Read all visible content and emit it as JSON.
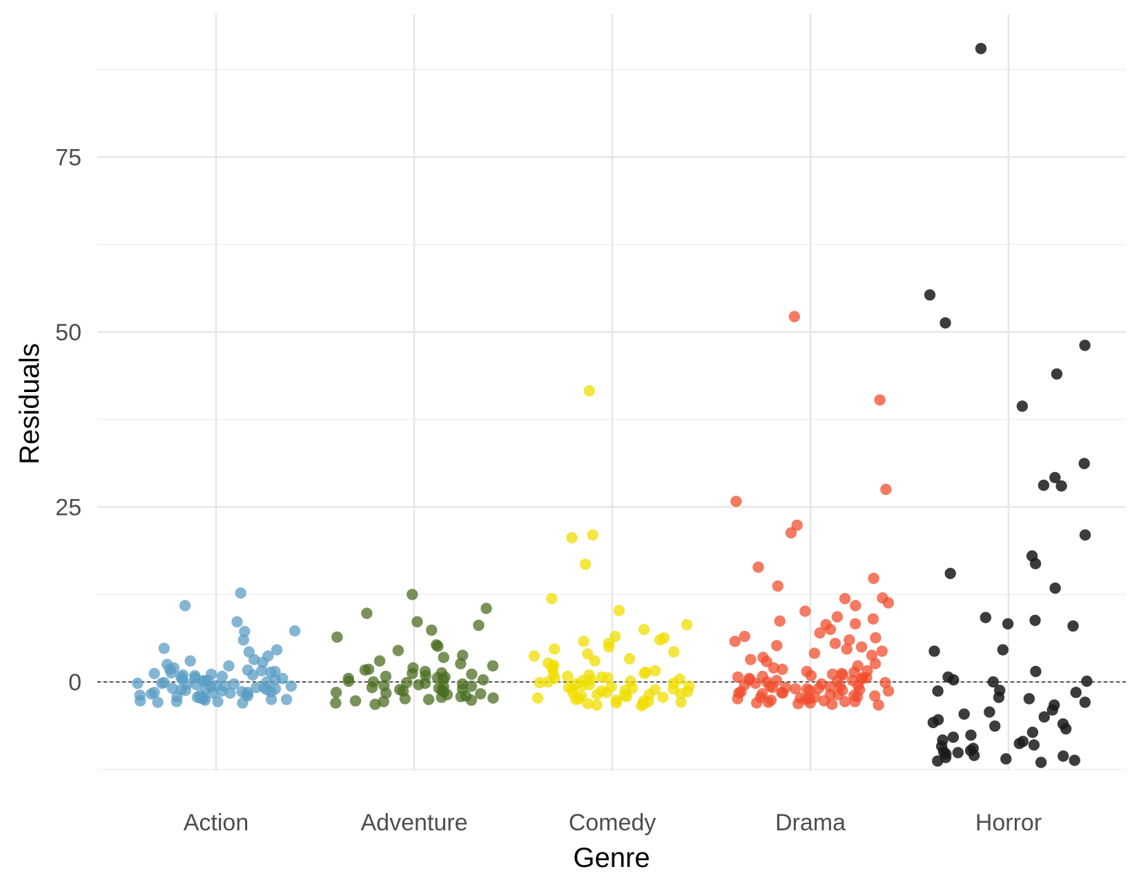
{
  "chart_data": {
    "type": "scatter",
    "xlabel": "Genre",
    "ylabel": "Residuals",
    "categories": [
      "Action",
      "Adventure",
      "Comedy",
      "Drama",
      "Horror"
    ],
    "ylim": [
      -12.5,
      92.5
    ],
    "yticks": [
      0,
      25,
      50,
      75
    ],
    "reference_line": 0,
    "grid": true,
    "legend": "none",
    "colors": {
      "Action": "#5b9ec4",
      "Adventure": "#4b6d21",
      "Comedy": "#f0de00",
      "Drama": "#f04e2e",
      "Horror": "#1a1a1a"
    },
    "series": [
      {
        "category": "Action",
        "values": [
          12.7,
          10.9,
          8.6,
          7.3,
          7.2,
          6.0,
          4.8,
          4.6,
          4.3,
          3.7,
          3.2,
          3.0,
          2.8,
          2.5,
          2.3,
          2.0,
          1.8,
          1.6,
          1.5,
          1.4,
          1.2,
          1.1,
          1.0,
          0.9,
          0.7,
          0.6,
          0.5,
          0.3,
          0.2,
          0.1,
          0.0,
          -0.1,
          -0.2,
          -0.3,
          -0.4,
          -0.5,
          -0.6,
          -0.7,
          -0.8,
          -0.9,
          -1.0,
          -1.0,
          -1.1,
          -1.2,
          -1.3,
          -1.4,
          -1.5,
          -1.5,
          -1.6,
          -1.7,
          -1.8,
          -1.9,
          -2.0,
          -2.1,
          -2.2,
          -2.3,
          -2.4,
          -2.5,
          -2.6,
          -2.7,
          -2.8,
          -2.9,
          -3.0,
          -0.2,
          0.4,
          -1.1,
          -2.2,
          1.3,
          -0.8,
          -1.6,
          0.8,
          -2.5,
          -0.3,
          1.7,
          -1.9,
          -0.6,
          0.2,
          -2.8,
          -1.4,
          1.0
        ]
      },
      {
        "category": "Adventure",
        "values": [
          12.5,
          10.5,
          9.8,
          8.6,
          8.1,
          7.4,
          6.4,
          5.3,
          5.1,
          4.5,
          3.8,
          3.5,
          3.0,
          2.6,
          2.3,
          2.0,
          1.7,
          1.5,
          1.3,
          1.1,
          0.9,
          0.7,
          0.5,
          0.3,
          0.1,
          0.0,
          -0.1,
          -0.3,
          -0.5,
          -0.6,
          -0.8,
          -1.0,
          -1.1,
          -1.3,
          -1.5,
          -1.6,
          -1.8,
          -2.0,
          -2.1,
          -2.3,
          -2.5,
          -2.6,
          -2.8,
          -3.0,
          -3.2,
          -0.4,
          0.6,
          -1.4,
          -2.2,
          1.2,
          -0.9,
          -1.7,
          0.4,
          -2.7,
          -0.2,
          1.8,
          -1.2,
          -2.4,
          0.8,
          -0.7
        ]
      },
      {
        "category": "Comedy",
        "values": [
          41.6,
          21.0,
          20.6,
          16.8,
          11.9,
          10.2,
          8.2,
          7.5,
          6.5,
          6.3,
          6.0,
          5.8,
          5.5,
          5.0,
          4.7,
          4.3,
          4.0,
          3.7,
          3.3,
          3.0,
          2.7,
          2.4,
          2.1,
          1.9,
          1.6,
          1.4,
          1.2,
          1.0,
          0.8,
          0.6,
          0.4,
          0.2,
          0.0,
          -0.2,
          -0.4,
          -0.6,
          -0.8,
          -1.0,
          -1.2,
          -1.4,
          -1.6,
          -1.8,
          -2.0,
          -2.2,
          -2.4,
          -2.6,
          -2.8,
          -3.0,
          -3.2,
          -3.4,
          -0.3,
          0.5,
          -1.1,
          -2.3,
          1.1,
          -0.7,
          -1.5,
          0.3,
          -2.7,
          -0.9,
          -1.9,
          -3.1,
          0.7,
          -1.3,
          -2.1,
          -0.5,
          -2.9,
          -1.7,
          0.1,
          -3.3,
          -1.0,
          -2.5,
          -0.1,
          -1.8
        ]
      },
      {
        "category": "Drama",
        "values": [
          52.2,
          40.3,
          27.5,
          25.8,
          22.4,
          21.3,
          16.4,
          14.8,
          13.7,
          12.0,
          11.9,
          11.3,
          10.9,
          10.1,
          9.3,
          9.0,
          8.7,
          8.3,
          8.2,
          7.5,
          7.0,
          6.5,
          6.3,
          6.0,
          5.8,
          5.5,
          5.2,
          5.0,
          4.7,
          4.4,
          4.1,
          3.8,
          3.5,
          3.2,
          2.9,
          2.6,
          2.3,
          2.0,
          1.8,
          1.6,
          1.4,
          1.2,
          1.0,
          0.8,
          0.6,
          0.4,
          0.2,
          0.0,
          -0.2,
          -0.4,
          -0.6,
          -0.8,
          -1.0,
          -1.2,
          -1.4,
          -1.6,
          -1.8,
          -2.0,
          -2.2,
          -2.4,
          -2.6,
          -2.8,
          -3.0,
          -3.2,
          -0.3,
          0.5,
          -1.1,
          -2.3,
          1.1,
          -0.7,
          -1.5,
          0.3,
          -2.7,
          -0.9,
          -1.9,
          -3.1,
          0.7,
          -1.3,
          -2.1,
          -0.5,
          -2.9,
          -1.7,
          0.1,
          -3.3,
          -1.0,
          -2.5,
          -0.1,
          -1.8,
          1.5,
          -0.6,
          -2.2,
          0.9,
          -1.2,
          -2.8,
          0.2,
          -0.8,
          -1.6,
          -3.0,
          0.6,
          -2.4
        ]
      },
      {
        "category": "Horror",
        "values": [
          90.5,
          55.3,
          51.3,
          48.1,
          44.0,
          39.4,
          31.2,
          29.2,
          28.1,
          28.0,
          21.0,
          18.0,
          16.9,
          15.5,
          13.4,
          9.2,
          8.8,
          8.3,
          8.0,
          4.6,
          4.4,
          1.5,
          0.7,
          0.3,
          0.1,
          0.0,
          -1.2,
          -1.3,
          -1.5,
          -2.2,
          -2.4,
          -2.9,
          -3.3,
          -4.0,
          -4.3,
          -4.6,
          -5.0,
          -5.4,
          -5.8,
          -6.0,
          -6.3,
          -6.7,
          -7.2,
          -7.6,
          -7.9,
          -8.3,
          -8.5,
          -8.8,
          -9.0,
          -9.2,
          -9.5,
          -9.8,
          -10.0,
          -10.1,
          -10.3,
          -10.5,
          -10.6,
          -10.8,
          -11.0,
          -11.2,
          -11.3,
          -11.5
        ]
      }
    ]
  }
}
